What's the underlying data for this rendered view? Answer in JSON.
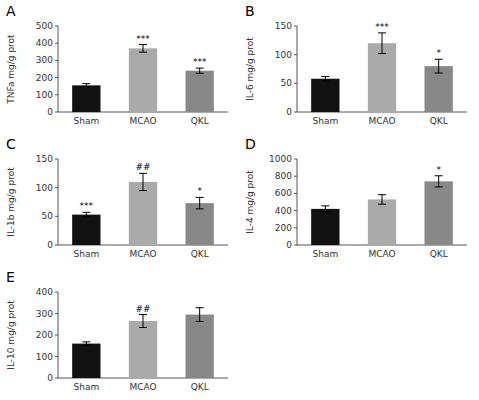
{
  "chart_data": [
    {
      "type": "bar",
      "title": "A",
      "ylabel": "TNFa mg/g prot",
      "categories": [
        "Sham",
        "MCAO",
        "QKL"
      ],
      "values": [
        155,
        370,
        240
      ],
      "errors": [
        10,
        22,
        15
      ],
      "colors": [
        "#111111",
        "#aaaaaa",
        "#888888"
      ],
      "annotations": [
        {
          "category": "MCAO",
          "text": "***"
        },
        {
          "category": "QKL",
          "text": "***"
        }
      ],
      "ylim": [
        0,
        500
      ],
      "yticks": [
        0,
        100,
        200,
        300,
        400,
        500
      ]
    },
    {
      "type": "bar",
      "title": "B",
      "ylabel": "IL-6 mg/g prot",
      "categories": [
        "Sham",
        "MCAO",
        "QKL"
      ],
      "values": [
        58,
        120,
        80
      ],
      "errors": [
        4,
        18,
        12
      ],
      "colors": [
        "#111111",
        "#aaaaaa",
        "#888888"
      ],
      "annotations": [
        {
          "category": "MCAO",
          "text": "***"
        },
        {
          "category": "QKL",
          "text": "*"
        }
      ],
      "ylim": [
        0,
        150
      ],
      "yticks": [
        0,
        50,
        100,
        150
      ]
    },
    {
      "type": "bar",
      "title": "C",
      "ylabel": "IL-1b mg/g prot",
      "categories": [
        "Sham",
        "MCAO",
        "QKL"
      ],
      "values": [
        53,
        110,
        73
      ],
      "errors": [
        4,
        15,
        10
      ],
      "colors": [
        "#111111",
        "#aaaaaa",
        "#888888"
      ],
      "annotations": [
        {
          "category": "Sham",
          "text": "***"
        },
        {
          "category": "MCAO",
          "text": "##"
        },
        {
          "category": "QKL",
          "text": "*"
        }
      ],
      "ylim": [
        0,
        150
      ],
      "yticks": [
        0,
        50,
        100,
        150
      ]
    },
    {
      "type": "bar",
      "title": "D",
      "ylabel": "IL-4 mg/g prot",
      "categories": [
        "Sham",
        "MCAO",
        "QKL"
      ],
      "values": [
        420,
        530,
        740
      ],
      "errors": [
        35,
        55,
        65
      ],
      "colors": [
        "#111111",
        "#aaaaaa",
        "#888888"
      ],
      "annotations": [
        {
          "category": "QKL",
          "text": "*"
        }
      ],
      "ylim": [
        0,
        1000
      ],
      "yticks": [
        0,
        200,
        400,
        600,
        800,
        1000
      ]
    },
    {
      "type": "bar",
      "title": "E",
      "ylabel": "IL-10 mg/g prot",
      "categories": [
        "Sham",
        "MCAO",
        "QKL"
      ],
      "values": [
        160,
        265,
        295
      ],
      "errors": [
        8,
        30,
        32
      ],
      "colors": [
        "#111111",
        "#aaaaaa",
        "#888888"
      ],
      "annotations": [
        {
          "category": "MCAO",
          "text": "##"
        }
      ],
      "ylim": [
        0,
        400
      ],
      "yticks": [
        0,
        100,
        200,
        300,
        400
      ]
    }
  ]
}
